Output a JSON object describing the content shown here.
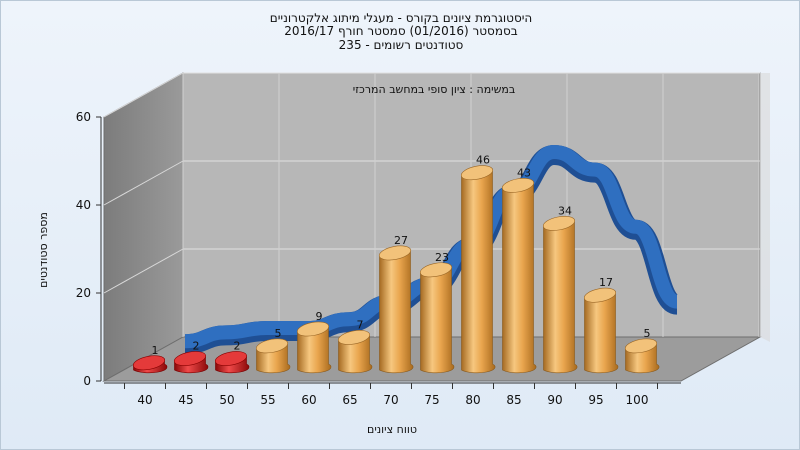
{
  "chart_data": {
    "type": "bar",
    "title_lines": [
      "היסטוגרמת ציונים בקורס - מעגלי מיתוג אלקטרוניים",
      "בסמסטר  (01/2016)  סמסטר חורף 2016/17",
      "סטודנטים רשומים - 235"
    ],
    "subtitle": "במשימה : ציון סופי במחשב המרכזי",
    "xlabel": "טווח ציונים",
    "ylabel": "מספר סטודנטים",
    "categories": [
      "40",
      "45",
      "50",
      "55",
      "60",
      "65",
      "70",
      "75",
      "80",
      "85",
      "90",
      "95",
      "100"
    ],
    "values": [
      1,
      2,
      2,
      5,
      9,
      7,
      27,
      23,
      46,
      43,
      34,
      17,
      5
    ],
    "bar_colors": [
      "#d21515",
      "#d21515",
      "#d21515",
      "#e8a650",
      "#e8a650",
      "#e8a650",
      "#e8a650",
      "#e8a650",
      "#e8a650",
      "#e8a650",
      "#e8a650",
      "#e8a650",
      "#e8a650"
    ],
    "curve": [
      2,
      4,
      5,
      5,
      7,
      11,
      15,
      24,
      36,
      45,
      41,
      28,
      11
    ],
    "curve_color": "#2f6fc0",
    "ylim": [
      0,
      60
    ],
    "yticks": [
      0,
      20,
      40,
      60
    ],
    "grid": true
  }
}
